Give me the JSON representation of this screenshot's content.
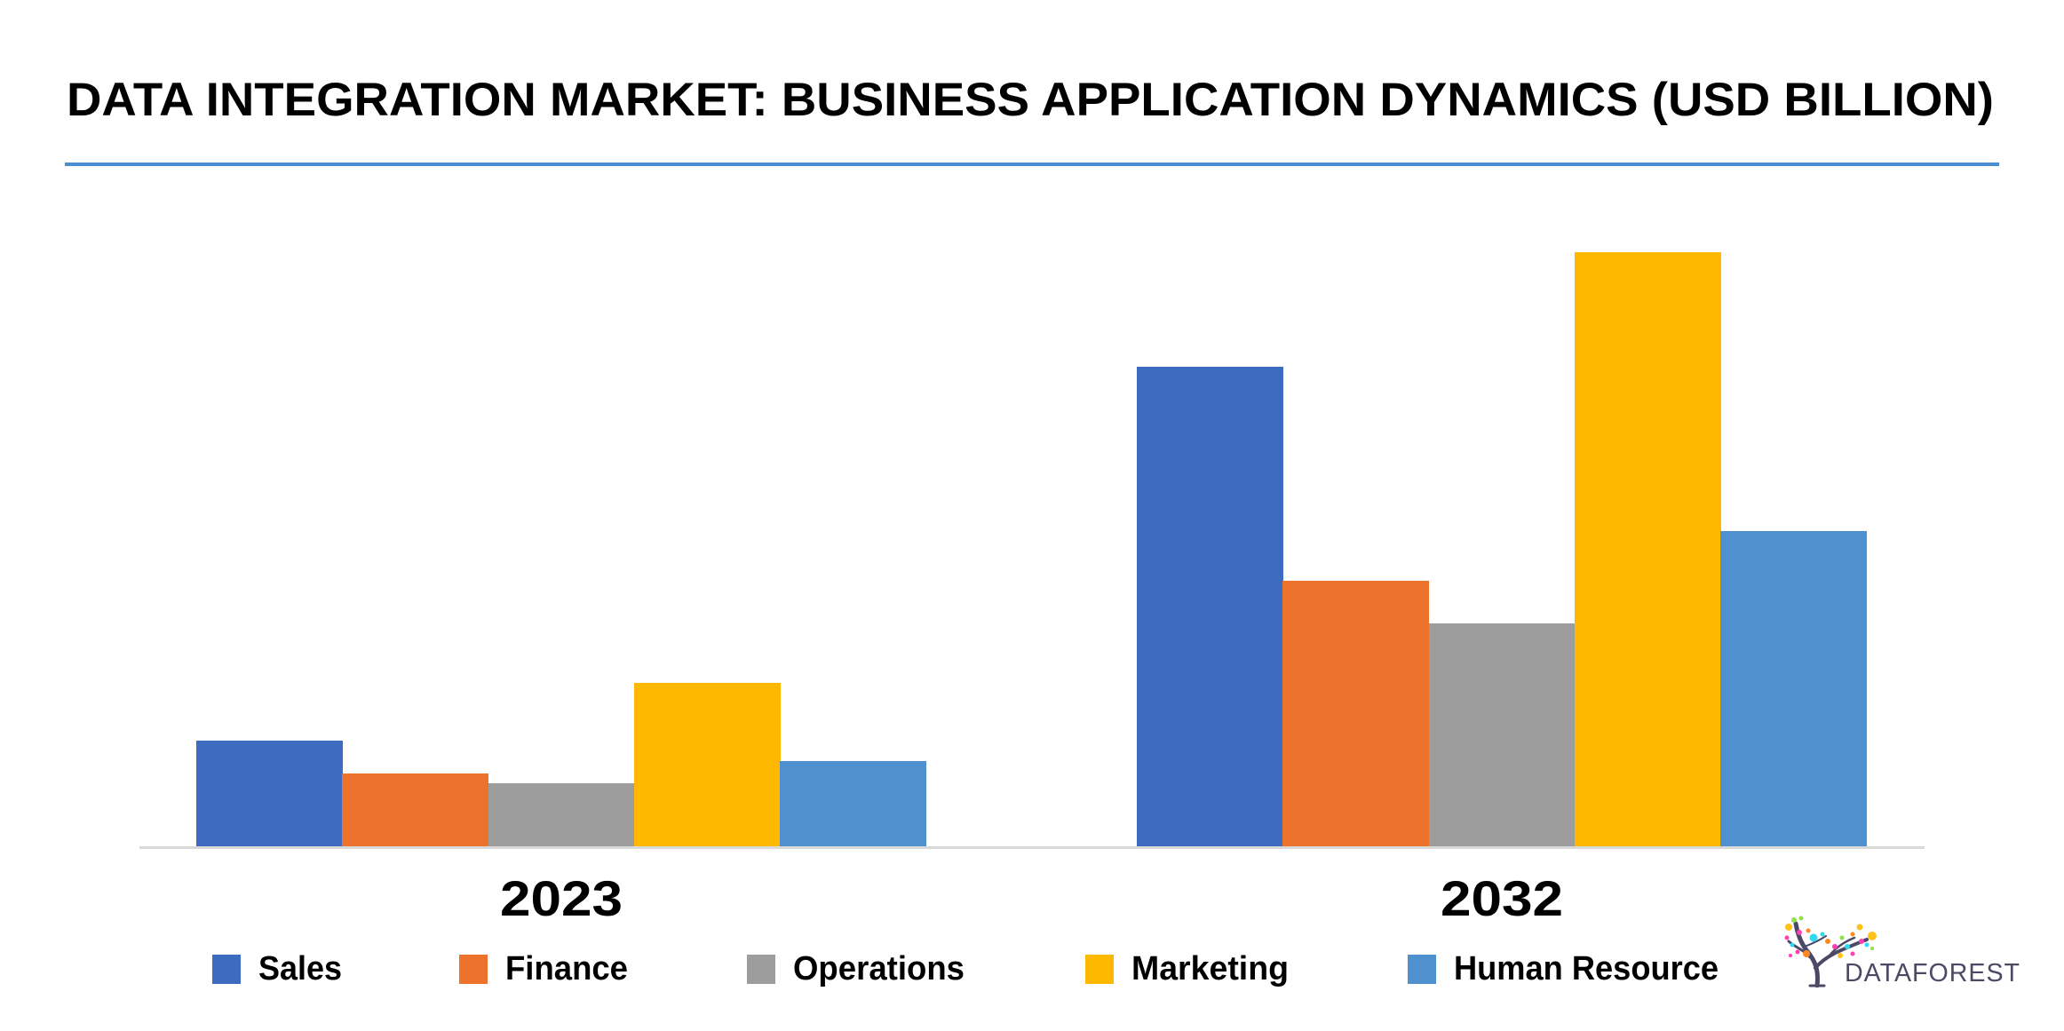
{
  "header": {
    "title": "DATA INTEGRATION MARKET: BUSINESS APPLICATION DYNAMICS (USD BILLION)",
    "rule_color": "#4a8fd3"
  },
  "axis": {
    "color": "#d9d9d9"
  },
  "logo": {
    "text": "DATAFOREST",
    "text_color": "#4b4966"
  },
  "legend": [
    {
      "label": "Sales",
      "color": "#3d6bbf"
    },
    {
      "label": "Finance",
      "color": "#ed722b"
    },
    {
      "label": "Operations",
      "color": "#9d9d9d"
    },
    {
      "label": "Marketing",
      "color": "#feb800"
    },
    {
      "label": "Human Resource",
      "color": "#4f91cf"
    }
  ],
  "chart_data": {
    "type": "bar",
    "title": "DATA INTEGRATION MARKET: BUSINESS APPLICATION DYNAMICS (USD BILLION)",
    "xlabel": "",
    "ylabel": "USD Billion",
    "categories": [
      "2023",
      "2032"
    ],
    "series": [
      {
        "name": "Sales",
        "color": "#3d6bbf",
        "values": [
          2.69,
          12.19
        ]
      },
      {
        "name": "Finance",
        "color": "#ed722b",
        "values": [
          1.85,
          6.75
        ]
      },
      {
        "name": "Operations",
        "color": "#9d9d9d",
        "values": [
          1.6,
          5.67
        ]
      },
      {
        "name": "Marketing",
        "color": "#feb800",
        "values": [
          4.15,
          15.1
        ]
      },
      {
        "name": "Human Resource",
        "color": "#4f91cf",
        "values": [
          2.17,
          8.01
        ]
      }
    ],
    "ylim": [
      0,
      16
    ],
    "grid": false,
    "y_axis_visible": false,
    "legend_position": "bottom",
    "note": "No value axis or data labels shown; values estimated from relative bar heights."
  }
}
